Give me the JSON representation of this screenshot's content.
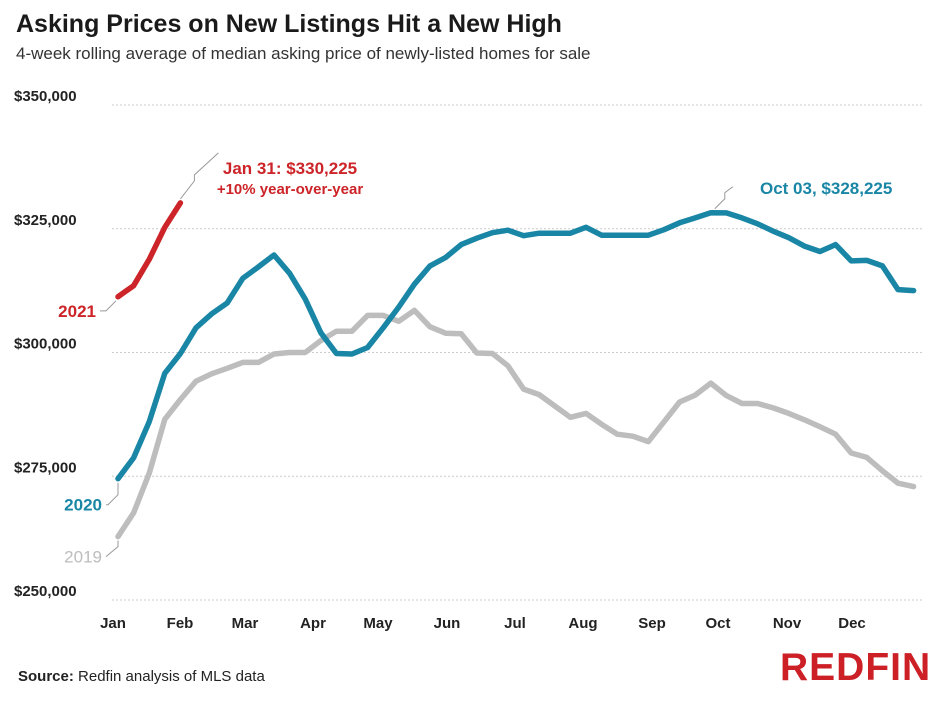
{
  "title": "Asking Prices on New Listings Hit a New High",
  "subtitle": "4-week rolling average of median asking price of newly-listed homes for sale",
  "source_label": "Source:",
  "source_text": "Redfin analysis of MLS data",
  "logo_text": "REDFIN",
  "colors": {
    "y2021": "#cc2428",
    "y2020": "#1a86a6",
    "y2019": "#bdbdbd",
    "grid": "#cccccc"
  },
  "chart_data": {
    "type": "line",
    "title": "Asking Prices on New Listings Hit a New High",
    "subtitle": "4-week rolling average of median asking price of newly-listed homes for sale",
    "xlabel": "",
    "ylabel": "",
    "months": [
      "Jan",
      "Feb",
      "Mar",
      "Apr",
      "May",
      "Jun",
      "Jul",
      "Aug",
      "Sep",
      "Oct",
      "Nov",
      "Dec"
    ],
    "ylim": [
      250000,
      350000
    ],
    "yticks": [
      250000,
      275000,
      300000,
      325000,
      350000
    ],
    "ytick_labels": [
      "$250,000",
      "$275,000",
      "$300,000",
      "$325,000",
      "$350,000"
    ],
    "grid": true,
    "series": [
      {
        "name": "2021",
        "color": "#cc2428",
        "x": [
          1,
          2,
          3,
          4,
          5
        ],
        "values": [
          311250,
          313500,
          318800,
          325300,
          330225
        ]
      },
      {
        "name": "2020",
        "color": "#1a86a6",
        "x": [
          1,
          2,
          3,
          4,
          5,
          6,
          7,
          8,
          9,
          10,
          11,
          12,
          13,
          14,
          15,
          16,
          17,
          18,
          19,
          20,
          21,
          22,
          23,
          24,
          25,
          26,
          27,
          28,
          29,
          30,
          31,
          32,
          33,
          34,
          35,
          36,
          37,
          38,
          39,
          40,
          41,
          42,
          43,
          44,
          45,
          46,
          47,
          48,
          49,
          50,
          51,
          52
        ],
        "values": [
          274500,
          278700,
          286000,
          295800,
          299800,
          305000,
          307800,
          310000,
          315000,
          317300,
          319700,
          316000,
          310800,
          304000,
          299800,
          299700,
          301000,
          305000,
          309200,
          313800,
          317500,
          319200,
          321800,
          323100,
          324200,
          324700,
          323600,
          324100,
          324100,
          324100,
          325300,
          323700,
          323700,
          323700,
          323700,
          324800,
          326200,
          327200,
          328225,
          328200,
          327200,
          326000,
          324500,
          323200,
          321500,
          320400,
          321800,
          318500,
          318600,
          317500,
          312700,
          312500
        ]
      },
      {
        "name": "2019",
        "color": "#bdbdbd",
        "x": [
          1,
          2,
          3,
          4,
          5,
          6,
          7,
          8,
          9,
          10,
          11,
          12,
          13,
          14,
          15,
          16,
          17,
          18,
          19,
          20,
          21,
          22,
          23,
          24,
          25,
          26,
          27,
          28,
          29,
          30,
          31,
          32,
          33,
          34,
          35,
          36,
          37,
          38,
          39,
          40,
          41,
          42,
          43,
          44,
          45,
          46,
          47,
          48,
          49,
          50,
          51,
          52
        ],
        "values": [
          262800,
          267600,
          275600,
          286500,
          290500,
          294200,
          295700,
          296800,
          298000,
          298000,
          299700,
          300000,
          300000,
          302400,
          304300,
          304300,
          307500,
          307500,
          306300,
          308500,
          305200,
          303900,
          303800,
          299900,
          299800,
          297300,
          292600,
          291500,
          289200,
          286900,
          287700,
          285500,
          283500,
          283100,
          282000,
          286000,
          290000,
          291400,
          293800,
          291300,
          289700,
          289700,
          288800,
          287700,
          286400,
          285000,
          283500,
          279700,
          278800,
          276100,
          273600,
          272900
        ]
      }
    ],
    "annotations": [
      {
        "series": "2021",
        "label": "2021"
      },
      {
        "series": "2020",
        "label": "2020"
      },
      {
        "series": "2019",
        "label": "2019"
      },
      {
        "series": "2021",
        "text_line1": "Jan 31: $330,225",
        "text_line2": "+10% year-over-year"
      },
      {
        "series": "2020",
        "text_line1": "Oct 03, $328,225"
      }
    ]
  }
}
